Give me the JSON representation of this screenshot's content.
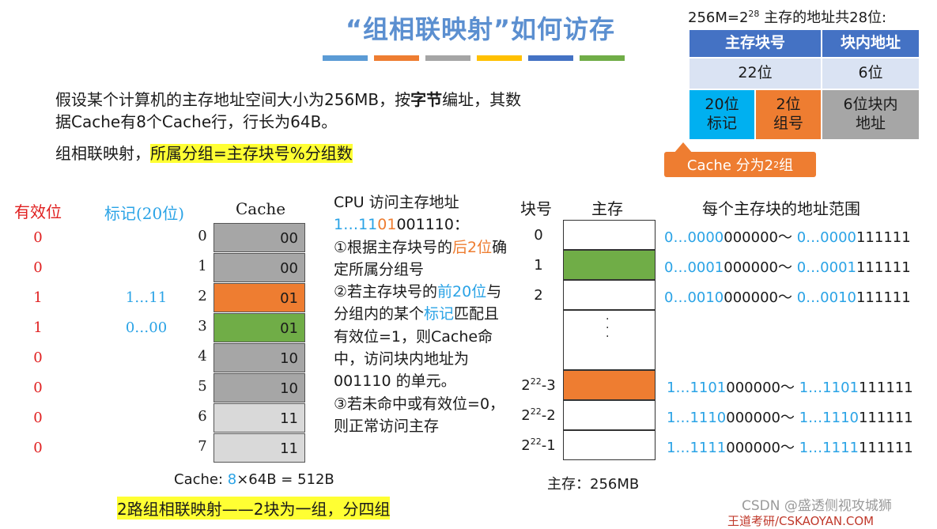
{
  "title": "“组相联映射”如何访存",
  "title_bar_colors": [
    "#5b9bd5",
    "#ee7d31",
    "#a5a5a5",
    "#ffc000",
    "#4472c4",
    "#70ad47"
  ],
  "top_right": {
    "caption_pre": "256M=2",
    "caption_sup": "28",
    "caption_post": " 主存的地址共28位:",
    "header_left": "主存块号",
    "header_right": "块内地址",
    "row2_left": "22位",
    "row2_right": "6位",
    "tag_cell": "20位\n标记",
    "group_cell": "2位\n组号",
    "offset_cell": "6位块内\n地址",
    "callout_pre": "Cache 分为2",
    "callout_sup": "2",
    "callout_post": "组"
  },
  "intro": {
    "line_pre": "假设某个计算机的主存地址空间大小为256MB，按",
    "line_bold": "字节",
    "line_post": "编址，其数据Cache有8个Cache行，行长为64B。",
    "group_pre": "组相联映射，",
    "group_hl": "所属分组=主存块号%分组数"
  },
  "cache_table": {
    "valid_header": "有效位",
    "tag_header": "标记(20位)",
    "cache_header": "Cache",
    "rows": [
      {
        "valid": "0",
        "tag": "",
        "index": "0",
        "bits": "00",
        "color": "#a6a6a6"
      },
      {
        "valid": "0",
        "tag": "",
        "index": "1",
        "bits": "00",
        "color": "#a6a6a6"
      },
      {
        "valid": "1",
        "tag": "1…11",
        "index": "2",
        "bits": "01",
        "color": "#ee7d31"
      },
      {
        "valid": "1",
        "tag": "0…00",
        "index": "3",
        "bits": "01",
        "color": "#70ad47"
      },
      {
        "valid": "0",
        "tag": "",
        "index": "4",
        "bits": "10",
        "color": "#a6a6a6"
      },
      {
        "valid": "0",
        "tag": "",
        "index": "5",
        "bits": "10",
        "color": "#a6a6a6"
      },
      {
        "valid": "0",
        "tag": "",
        "index": "6",
        "bits": "11",
        "color": "#d9d9d9"
      },
      {
        "valid": "0",
        "tag": "",
        "index": "7",
        "bits": "11",
        "color": "#d9d9d9"
      }
    ],
    "caption_pre": "Cache: ",
    "caption_num": "8",
    "caption_post": "×64B = 512B",
    "bottom_note": "2路组相联映射——2块为一组，分四组"
  },
  "cpu": {
    "line1": "CPU 访问主存地址",
    "addr_a": "1…11",
    "addr_b": "01",
    "addr_c": "001110",
    "addr_d": "：",
    "s1_a": "①根据主存块号的",
    "s1_b": "后2位",
    "s1_c": "确定所属分组号",
    "s2_a": "②若主存块号的",
    "s2_b": "前20位",
    "s2_c": "与分组内的某个",
    "s2_d": "标记",
    "s2_e": "匹配且有效位=1，则Cache命中，访问块内地址为 001110 的单元。",
    "s3": "③若未命中或有效位=0，则正常访问主存"
  },
  "memory": {
    "block_header": "块号",
    "mem_header": "主存",
    "range_header": "每个主存块的地址范围",
    "ellipsis": "·\n·\n·",
    "caption": "主存：256MB",
    "blocks": [
      {
        "label": "0",
        "sup": "",
        "suffix": "",
        "color": "#ffffff",
        "r1": "0…0000",
        "r2": "000000",
        "r3": "0…0000",
        "r4": "111111"
      },
      {
        "label": "1",
        "sup": "",
        "suffix": "",
        "color": "#70ad47",
        "r1": "0…0001",
        "r2": "000000",
        "r3": "0…0001",
        "r4": "111111"
      },
      {
        "label": "2",
        "sup": "",
        "suffix": "",
        "color": "#ffffff",
        "r1": "0…0010",
        "r2": "000000",
        "r3": "0…0010",
        "r4": "111111"
      },
      {
        "label": "2",
        "sup": "22",
        "suffix": "-3",
        "color": "#ee7d31",
        "r1": "1…1101",
        "r2": "000000",
        "r3": "1…1101",
        "r4": "111111"
      },
      {
        "label": "2",
        "sup": "22",
        "suffix": "-2",
        "color": "#ffffff",
        "r1": "1…1110",
        "r2": "000000",
        "r3": "1…1110",
        "r4": "111111"
      },
      {
        "label": "2",
        "sup": "22",
        "suffix": "-1",
        "color": "#ffffff",
        "r1": "1…1111",
        "r2": "000000",
        "r3": "1…1111",
        "r4": "111111"
      }
    ],
    "tilde": "～ "
  },
  "watermark": {
    "csdn": "CSDN @盛透侧视攻城狮",
    "wd": "王道考研/CSKAOYAN.COM"
  }
}
